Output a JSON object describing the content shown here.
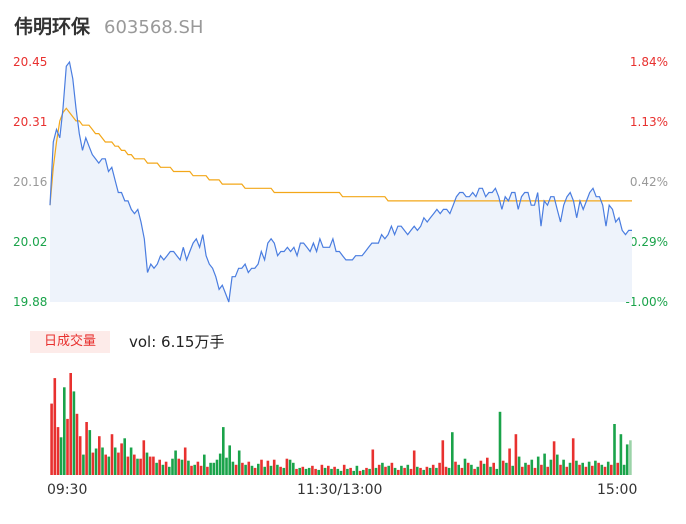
{
  "header": {
    "name": "伟明环保",
    "code": "603568.SH"
  },
  "colors": {
    "price_line": "#4a7de0",
    "avg_line": "#f3a719",
    "up": "#e8312f",
    "down": "#1aa34a",
    "neutral": "#999999",
    "area": "#eef3fb"
  },
  "axis": {
    "price_ticks": [
      "20.45",
      "20.31",
      "20.16",
      "20.02",
      "19.88"
    ],
    "pct_ticks": [
      "1.84%",
      "1.13%",
      "0.42%",
      "-0.29%",
      "-1.00%"
    ],
    "time_ticks": [
      "09:30",
      "11:30/13:00",
      "15:00"
    ]
  },
  "volume": {
    "badge": "日成交量",
    "text": "vol: 6.15万手"
  },
  "chart_data": {
    "type": "line",
    "title": "",
    "x_range": [
      "09:30",
      "15:00"
    ],
    "ylim": [
      19.88,
      20.45
    ],
    "pct_range": [
      -1.0,
      1.84
    ],
    "grid": false,
    "series": [
      {
        "name": "",
        "role": "price",
        "values": [
          20.11,
          20.26,
          20.29,
          20.27,
          20.34,
          20.44,
          20.45,
          20.41,
          20.34,
          20.28,
          20.24,
          20.27,
          20.25,
          20.23,
          20.22,
          20.21,
          20.22,
          20.22,
          20.19,
          20.2,
          20.17,
          20.14,
          20.14,
          20.12,
          20.12,
          20.1,
          20.09,
          20.1,
          20.07,
          20.03,
          19.95,
          19.97,
          19.96,
          19.97,
          19.99,
          19.98,
          19.99,
          20.0,
          20.0,
          19.99,
          19.98,
          20.01,
          19.98,
          20.0,
          20.02,
          20.03,
          20.01,
          20.04,
          19.99,
          19.97,
          19.96,
          19.94,
          19.91,
          19.92,
          19.9,
          19.88,
          19.94,
          19.94,
          19.96,
          19.96,
          19.97,
          19.95,
          19.96,
          19.96,
          19.97,
          20.0,
          19.98,
          20.02,
          20.03,
          20.02,
          19.99,
          20.0,
          20.0,
          20.01,
          20.0,
          20.01,
          19.99,
          20.02,
          20.02,
          20.01,
          20.0,
          20.02,
          20.0,
          20.03,
          20.01,
          20.01,
          20.01,
          20.03,
          20.0,
          20.0,
          19.99,
          19.98,
          19.98,
          19.98,
          19.99,
          19.99,
          19.99,
          20.0,
          20.01,
          20.02,
          20.02,
          20.02,
          20.04,
          20.03,
          20.04,
          20.06,
          20.04,
          20.06,
          20.06,
          20.05,
          20.04,
          20.05,
          20.06,
          20.05,
          20.06,
          20.08,
          20.07,
          20.08,
          20.09,
          20.1,
          20.09,
          20.1,
          20.1,
          20.09,
          20.11,
          20.13,
          20.14,
          20.14,
          20.13,
          20.13,
          20.14,
          20.13,
          20.15,
          20.15,
          20.13,
          20.14,
          20.14,
          20.15,
          20.13,
          20.1,
          20.13,
          20.12,
          20.14,
          20.14,
          20.1,
          20.13,
          20.14,
          20.14,
          20.11,
          20.11,
          20.14,
          20.06,
          20.12,
          20.11,
          20.13,
          20.13,
          20.1,
          20.07,
          20.11,
          20.13,
          20.14,
          20.12,
          20.08,
          20.12,
          20.1,
          20.12,
          20.14,
          20.15,
          20.13,
          20.13,
          20.11,
          20.06,
          20.11,
          20.1,
          20.07,
          20.08,
          20.05,
          20.04,
          20.05,
          20.05
        ]
      },
      {
        "name": "",
        "role": "average",
        "values": [
          20.11,
          20.2,
          20.26,
          20.31,
          20.33,
          20.34,
          20.33,
          20.32,
          20.31,
          20.31,
          20.3,
          20.3,
          20.3,
          20.29,
          20.28,
          20.28,
          20.27,
          20.26,
          20.26,
          20.26,
          20.25,
          20.25,
          20.24,
          20.24,
          20.23,
          20.23,
          20.22,
          20.22,
          20.22,
          20.22,
          20.21,
          20.21,
          20.21,
          20.21,
          20.2,
          20.2,
          20.2,
          20.2,
          20.19,
          20.19,
          20.19,
          20.19,
          20.19,
          20.19,
          20.18,
          20.18,
          20.18,
          20.18,
          20.18,
          20.17,
          20.17,
          20.17,
          20.17,
          20.16,
          20.16,
          20.16,
          20.16,
          20.16,
          20.16,
          20.16,
          20.15,
          20.15,
          20.15,
          20.15,
          20.15,
          20.15,
          20.15,
          20.15,
          20.15,
          20.14,
          20.14,
          20.14,
          20.14,
          20.14,
          20.14,
          20.14,
          20.14,
          20.14,
          20.14,
          20.14,
          20.14,
          20.14,
          20.14,
          20.14,
          20.14,
          20.14,
          20.14,
          20.14,
          20.14,
          20.14,
          20.13,
          20.13,
          20.13,
          20.13,
          20.13,
          20.13,
          20.13,
          20.13,
          20.13,
          20.13,
          20.13,
          20.13,
          20.13,
          20.13,
          20.12,
          20.12,
          20.12,
          20.12,
          20.12,
          20.12,
          20.12,
          20.12,
          20.12,
          20.12,
          20.12,
          20.12,
          20.12,
          20.12,
          20.12,
          20.12,
          20.12,
          20.12,
          20.12,
          20.12,
          20.12,
          20.12,
          20.12,
          20.12,
          20.12,
          20.12,
          20.12,
          20.12,
          20.12,
          20.12,
          20.12,
          20.12,
          20.12,
          20.12,
          20.12,
          20.12,
          20.12,
          20.12,
          20.12,
          20.12,
          20.12,
          20.12,
          20.12,
          20.12,
          20.12,
          20.12,
          20.12,
          20.12,
          20.12,
          20.12,
          20.12,
          20.12,
          20.12,
          20.12,
          20.12,
          20.12,
          20.12,
          20.12,
          20.12,
          20.12,
          20.12,
          20.12,
          20.12,
          20.12,
          20.12,
          20.12,
          20.12,
          20.12,
          20.12,
          20.12,
          20.12,
          20.12,
          20.12,
          20.12,
          20.12,
          20.12
        ]
      }
    ],
    "volume_bars": [
      {
        "v": 0.7,
        "d": "u"
      },
      {
        "v": 0.95,
        "d": "u"
      },
      {
        "v": 0.47,
        "d": "u"
      },
      {
        "v": 0.37,
        "d": "d"
      },
      {
        "v": 0.86,
        "d": "d"
      },
      {
        "v": 0.55,
        "d": "u"
      },
      {
        "v": 1.0,
        "d": "u"
      },
      {
        "v": 0.82,
        "d": "d"
      },
      {
        "v": 0.6,
        "d": "u"
      },
      {
        "v": 0.38,
        "d": "u"
      },
      {
        "v": 0.2,
        "d": "d"
      },
      {
        "v": 0.52,
        "d": "u"
      },
      {
        "v": 0.44,
        "d": "d"
      },
      {
        "v": 0.22,
        "d": "u"
      },
      {
        "v": 0.26,
        "d": "d"
      },
      {
        "v": 0.38,
        "d": "u"
      },
      {
        "v": 0.27,
        "d": "d"
      },
      {
        "v": 0.2,
        "d": "u"
      },
      {
        "v": 0.18,
        "d": "d"
      },
      {
        "v": 0.4,
        "d": "u"
      },
      {
        "v": 0.27,
        "d": "d"
      },
      {
        "v": 0.22,
        "d": "u"
      },
      {
        "v": 0.31,
        "d": "u"
      },
      {
        "v": 0.36,
        "d": "d"
      },
      {
        "v": 0.18,
        "d": "u"
      },
      {
        "v": 0.27,
        "d": "d"
      },
      {
        "v": 0.2,
        "d": "u"
      },
      {
        "v": 0.16,
        "d": "d"
      },
      {
        "v": 0.16,
        "d": "u"
      },
      {
        "v": 0.34,
        "d": "u"
      },
      {
        "v": 0.22,
        "d": "d"
      },
      {
        "v": 0.18,
        "d": "u"
      },
      {
        "v": 0.18,
        "d": "u"
      },
      {
        "v": 0.12,
        "d": "d"
      },
      {
        "v": 0.15,
        "d": "u"
      },
      {
        "v": 0.1,
        "d": "d"
      },
      {
        "v": 0.13,
        "d": "u"
      },
      {
        "v": 0.08,
        "d": "d"
      },
      {
        "v": 0.16,
        "d": "d"
      },
      {
        "v": 0.24,
        "d": "d"
      },
      {
        "v": 0.16,
        "d": "u"
      },
      {
        "v": 0.15,
        "d": "d"
      },
      {
        "v": 0.27,
        "d": "u"
      },
      {
        "v": 0.14,
        "d": "d"
      },
      {
        "v": 0.09,
        "d": "u"
      },
      {
        "v": 0.1,
        "d": "d"
      },
      {
        "v": 0.13,
        "d": "u"
      },
      {
        "v": 0.09,
        "d": "u"
      },
      {
        "v": 0.2,
        "d": "d"
      },
      {
        "v": 0.08,
        "d": "u"
      },
      {
        "v": 0.12,
        "d": "d"
      },
      {
        "v": 0.12,
        "d": "d"
      },
      {
        "v": 0.15,
        "d": "d"
      },
      {
        "v": 0.21,
        "d": "d"
      },
      {
        "v": 0.47,
        "d": "d"
      },
      {
        "v": 0.17,
        "d": "d"
      },
      {
        "v": 0.29,
        "d": "d"
      },
      {
        "v": 0.13,
        "d": "d"
      },
      {
        "v": 0.1,
        "d": "u"
      },
      {
        "v": 0.24,
        "d": "d"
      },
      {
        "v": 0.12,
        "d": "u"
      },
      {
        "v": 0.1,
        "d": "d"
      },
      {
        "v": 0.13,
        "d": "u"
      },
      {
        "v": 0.09,
        "d": "d"
      },
      {
        "v": 0.07,
        "d": "u"
      },
      {
        "v": 0.11,
        "d": "d"
      },
      {
        "v": 0.15,
        "d": "u"
      },
      {
        "v": 0.08,
        "d": "d"
      },
      {
        "v": 0.14,
        "d": "u"
      },
      {
        "v": 0.09,
        "d": "d"
      },
      {
        "v": 0.15,
        "d": "u"
      },
      {
        "v": 0.1,
        "d": "d"
      },
      {
        "v": 0.08,
        "d": "u"
      },
      {
        "v": 0.07,
        "d": "d"
      },
      {
        "v": 0.16,
        "d": "u"
      },
      {
        "v": 0.15,
        "d": "d"
      },
      {
        "v": 0.12,
        "d": "d"
      },
      {
        "v": 0.06,
        "d": "u"
      },
      {
        "v": 0.07,
        "d": "d"
      },
      {
        "v": 0.08,
        "d": "u"
      },
      {
        "v": 0.06,
        "d": "d"
      },
      {
        "v": 0.07,
        "d": "d"
      },
      {
        "v": 0.09,
        "d": "u"
      },
      {
        "v": 0.06,
        "d": "u"
      },
      {
        "v": 0.05,
        "d": "d"
      },
      {
        "v": 0.1,
        "d": "u"
      },
      {
        "v": 0.07,
        "d": "d"
      },
      {
        "v": 0.09,
        "d": "u"
      },
      {
        "v": 0.06,
        "d": "d"
      },
      {
        "v": 0.08,
        "d": "u"
      },
      {
        "v": 0.06,
        "d": "d"
      },
      {
        "v": 0.04,
        "d": "d"
      },
      {
        "v": 0.1,
        "d": "u"
      },
      {
        "v": 0.06,
        "d": "d"
      },
      {
        "v": 0.07,
        "d": "u"
      },
      {
        "v": 0.04,
        "d": "d"
      },
      {
        "v": 0.09,
        "d": "d"
      },
      {
        "v": 0.04,
        "d": "u"
      },
      {
        "v": 0.05,
        "d": "d"
      },
      {
        "v": 0.07,
        "d": "u"
      },
      {
        "v": 0.06,
        "d": "d"
      },
      {
        "v": 0.25,
        "d": "u"
      },
      {
        "v": 0.07,
        "d": "d"
      },
      {
        "v": 0.1,
        "d": "u"
      },
      {
        "v": 0.12,
        "d": "d"
      },
      {
        "v": 0.08,
        "d": "u"
      },
      {
        "v": 0.09,
        "d": "d"
      },
      {
        "v": 0.12,
        "d": "u"
      },
      {
        "v": 0.07,
        "d": "d"
      },
      {
        "v": 0.05,
        "d": "u"
      },
      {
        "v": 0.09,
        "d": "d"
      },
      {
        "v": 0.07,
        "d": "u"
      },
      {
        "v": 0.1,
        "d": "d"
      },
      {
        "v": 0.06,
        "d": "u"
      },
      {
        "v": 0.24,
        "d": "u"
      },
      {
        "v": 0.08,
        "d": "d"
      },
      {
        "v": 0.07,
        "d": "u"
      },
      {
        "v": 0.05,
        "d": "d"
      },
      {
        "v": 0.08,
        "d": "u"
      },
      {
        "v": 0.07,
        "d": "d"
      },
      {
        "v": 0.1,
        "d": "u"
      },
      {
        "v": 0.07,
        "d": "d"
      },
      {
        "v": 0.12,
        "d": "u"
      },
      {
        "v": 0.34,
        "d": "u"
      },
      {
        "v": 0.08,
        "d": "u"
      },
      {
        "v": 0.07,
        "d": "d"
      },
      {
        "v": 0.42,
        "d": "d"
      },
      {
        "v": 0.13,
        "d": "u"
      },
      {
        "v": 0.1,
        "d": "d"
      },
      {
        "v": 0.07,
        "d": "u"
      },
      {
        "v": 0.16,
        "d": "d"
      },
      {
        "v": 0.12,
        "d": "u"
      },
      {
        "v": 0.1,
        "d": "d"
      },
      {
        "v": 0.06,
        "d": "u"
      },
      {
        "v": 0.08,
        "d": "d"
      },
      {
        "v": 0.14,
        "d": "u"
      },
      {
        "v": 0.11,
        "d": "d"
      },
      {
        "v": 0.17,
        "d": "u"
      },
      {
        "v": 0.08,
        "d": "d"
      },
      {
        "v": 0.12,
        "d": "u"
      },
      {
        "v": 0.06,
        "d": "d"
      },
      {
        "v": 0.62,
        "d": "d"
      },
      {
        "v": 0.14,
        "d": "u"
      },
      {
        "v": 0.12,
        "d": "d"
      },
      {
        "v": 0.26,
        "d": "u"
      },
      {
        "v": 0.09,
        "d": "d"
      },
      {
        "v": 0.4,
        "d": "u"
      },
      {
        "v": 0.18,
        "d": "d"
      },
      {
        "v": 0.08,
        "d": "u"
      },
      {
        "v": 0.12,
        "d": "d"
      },
      {
        "v": 0.1,
        "d": "u"
      },
      {
        "v": 0.15,
        "d": "d"
      },
      {
        "v": 0.07,
        "d": "u"
      },
      {
        "v": 0.18,
        "d": "d"
      },
      {
        "v": 0.1,
        "d": "u"
      },
      {
        "v": 0.21,
        "d": "d"
      },
      {
        "v": 0.08,
        "d": "u"
      },
      {
        "v": 0.15,
        "d": "d"
      },
      {
        "v": 0.33,
        "d": "u"
      },
      {
        "v": 0.2,
        "d": "d"
      },
      {
        "v": 0.1,
        "d": "u"
      },
      {
        "v": 0.15,
        "d": "d"
      },
      {
        "v": 0.08,
        "d": "u"
      },
      {
        "v": 0.12,
        "d": "d"
      },
      {
        "v": 0.36,
        "d": "u"
      },
      {
        "v": 0.14,
        "d": "d"
      },
      {
        "v": 0.1,
        "d": "u"
      },
      {
        "v": 0.12,
        "d": "d"
      },
      {
        "v": 0.08,
        "d": "u"
      },
      {
        "v": 0.13,
        "d": "d"
      },
      {
        "v": 0.09,
        "d": "u"
      },
      {
        "v": 0.14,
        "d": "d"
      },
      {
        "v": 0.12,
        "d": "u"
      },
      {
        "v": 0.1,
        "d": "d"
      },
      {
        "v": 0.08,
        "d": "u"
      },
      {
        "v": 0.13,
        "d": "d"
      },
      {
        "v": 0.1,
        "d": "u"
      },
      {
        "v": 0.5,
        "d": "d"
      },
      {
        "v": 0.12,
        "d": "u"
      },
      {
        "v": 0.4,
        "d": "d"
      },
      {
        "v": 0.1,
        "d": "d"
      },
      {
        "v": 0.3,
        "d": "d"
      },
      {
        "v": 0.34,
        "d": "n"
      }
    ]
  }
}
